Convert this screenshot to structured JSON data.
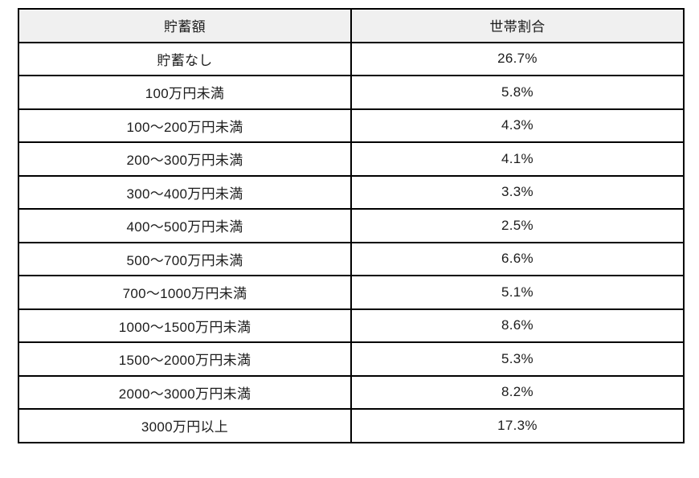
{
  "table": {
    "headers": [
      "貯蓄額",
      "世帯割合"
    ],
    "rows": [
      [
        "貯蓄なし",
        "26.7%"
      ],
      [
        "100万円未満",
        "5.8%"
      ],
      [
        "100〜200万円未満",
        "4.3%"
      ],
      [
        "200〜300万円未満",
        "4.1%"
      ],
      [
        "300〜400万円未満",
        "3.3%"
      ],
      [
        "400〜500万円未満",
        "2.5%"
      ],
      [
        "500〜700万円未満",
        "6.6%"
      ],
      [
        "700〜1000万円未満",
        "5.1%"
      ],
      [
        "1000〜1500万円未満",
        "8.6%"
      ],
      [
        "1500〜2000万円未満",
        "5.3%"
      ],
      [
        "2000〜3000万円未満",
        "8.2%"
      ],
      [
        "3000万円以上",
        "17.3%"
      ]
    ]
  },
  "chart_data": {
    "type": "table",
    "columns": [
      "貯蓄額",
      "世帯割合"
    ],
    "categories": [
      "貯蓄なし",
      "100万円未満",
      "100〜200万円未満",
      "200〜300万円未満",
      "300〜400万円未満",
      "400〜500万円未満",
      "500〜700万円未満",
      "700〜1000万円未満",
      "1000〜1500万円未満",
      "1500〜2000万円未満",
      "2000〜3000万円未満",
      "3000万円以上"
    ],
    "values": [
      26.7,
      5.8,
      4.3,
      4.1,
      3.3,
      2.5,
      6.6,
      5.1,
      8.6,
      5.3,
      8.2,
      17.3
    ],
    "value_unit": "%",
    "title": "",
    "legend": "none",
    "grid": "full-borders"
  },
  "colors": {
    "header_bg": "#f0f0f0",
    "row_bg": "#ffffff",
    "border": "#000000",
    "text": "#1c1c1c"
  }
}
